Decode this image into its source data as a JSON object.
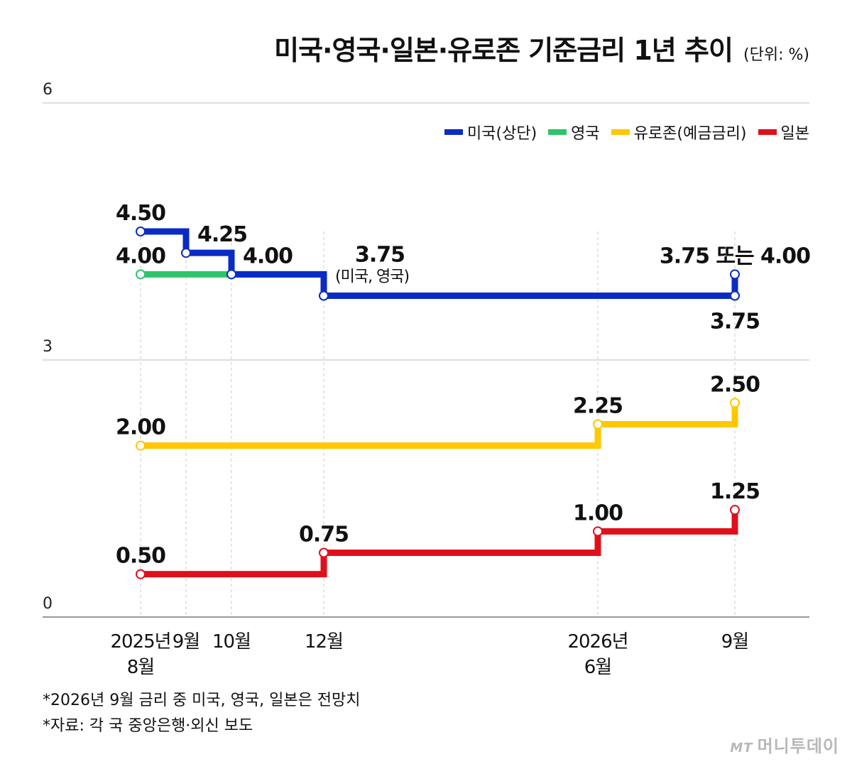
{
  "title": "미국·영국·일본·유로존 기준금리 1년 추이",
  "unit": "(단위: %)",
  "footnotes": [
    "*2026년 9월 금리 중 미국, 영국, 일본은 전망치",
    "*자료: 각 국 중앙은행·외신 보도"
  ],
  "credit": {
    "mark": "MT",
    "name": "머니투데이"
  },
  "chart_data": {
    "type": "line",
    "step": true,
    "ylim": [
      0,
      6
    ],
    "y_ticks": [
      "6",
      "3",
      "0"
    ],
    "x_ticks": [
      {
        "x": 0,
        "lines": [
          "2025년",
          "8월"
        ]
      },
      {
        "x": 1,
        "lines": [
          "9월"
        ]
      },
      {
        "x": 2,
        "lines": [
          "10월"
        ]
      },
      {
        "x": 4,
        "lines": [
          "12월"
        ]
      },
      {
        "x": 10,
        "lines": [
          "2026년",
          "6월"
        ]
      },
      {
        "x": 13,
        "lines": [
          "9월"
        ]
      }
    ],
    "legend": [
      {
        "name": "미국(상단)",
        "color": "#0a2bc4"
      },
      {
        "name": "영국",
        "color": "#2ec46b"
      },
      {
        "name": "유로존(예금금리)",
        "color": "#ffc800"
      },
      {
        "name": "일본",
        "color": "#e0101a"
      }
    ],
    "series": [
      {
        "name": "미국(상단)",
        "color": "#0a2bc4",
        "points": [
          [
            0,
            4.5
          ],
          [
            1,
            4.25
          ],
          [
            2,
            4.0
          ],
          [
            4,
            3.75
          ],
          [
            13,
            3.75
          ],
          [
            13,
            4.0
          ]
        ]
      },
      {
        "name": "영국",
        "color": "#2ec46b",
        "points": [
          [
            0,
            4.0
          ],
          [
            2,
            4.0
          ],
          [
            4,
            3.75
          ],
          [
            13,
            3.75
          ]
        ]
      },
      {
        "name": "유로존(예금금리)",
        "color": "#ffc800",
        "points": [
          [
            0,
            2.0
          ],
          [
            10,
            2.25
          ],
          [
            13,
            2.5
          ]
        ]
      },
      {
        "name": "일본",
        "color": "#e0101a",
        "points": [
          [
            0,
            0.5
          ],
          [
            4,
            0.75
          ],
          [
            10,
            1.0
          ],
          [
            13,
            1.25
          ]
        ]
      }
    ],
    "data_labels": [
      {
        "text": "4.50",
        "x": 0,
        "y": 4.5,
        "pos": "above"
      },
      {
        "text": "4.00",
        "x": 0,
        "y": 4.0,
        "pos": "above"
      },
      {
        "text": "4.25",
        "x": 1,
        "y": 4.25,
        "pos": "above-right"
      },
      {
        "text": "4.00",
        "x": 2,
        "y": 4.0,
        "pos": "above-right"
      },
      {
        "text": "3.75",
        "x": 4,
        "y": 3.75,
        "pos": "above-right-high"
      },
      {
        "text": "(미국, 영국)",
        "x": 4,
        "y": 3.75,
        "pos": "above-right-mid",
        "small": true
      },
      {
        "text": "3.75 또는 4.00",
        "x": 13,
        "y": 4.0,
        "pos": "above"
      },
      {
        "text": "3.75",
        "x": 13,
        "y": 3.75,
        "pos": "below"
      },
      {
        "text": "2.00",
        "x": 0,
        "y": 2.0,
        "pos": "above"
      },
      {
        "text": "2.25",
        "x": 10,
        "y": 2.25,
        "pos": "above"
      },
      {
        "text": "2.50",
        "x": 13,
        "y": 2.5,
        "pos": "above"
      },
      {
        "text": "0.50",
        "x": 0,
        "y": 0.5,
        "pos": "above"
      },
      {
        "text": "0.75",
        "x": 4,
        "y": 0.75,
        "pos": "above"
      },
      {
        "text": "1.00",
        "x": 10,
        "y": 1.0,
        "pos": "above"
      },
      {
        "text": "1.25",
        "x": 13,
        "y": 1.25,
        "pos": "above"
      }
    ]
  }
}
